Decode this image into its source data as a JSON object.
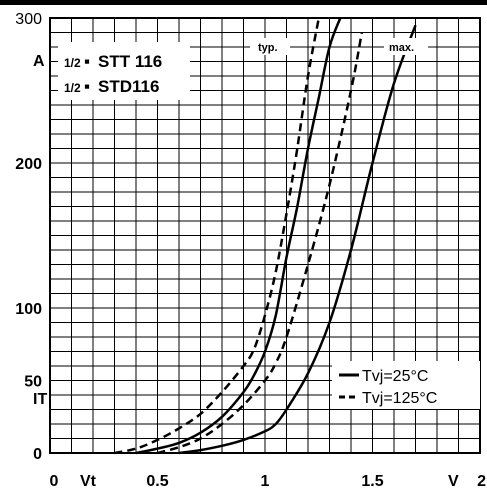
{
  "chart_data": {
    "type": "line",
    "title_lines": [
      {
        "fraction": "1/2",
        "text": "STT 116"
      },
      {
        "fraction": "1/2",
        "text": "STD116"
      }
    ],
    "xlabel": "Vt",
    "x_unit": "V",
    "ylabel": "IT",
    "y_unit": "A",
    "xlim": [
      0,
      2
    ],
    "ylim": [
      0,
      300
    ],
    "x_ticks": [
      {
        "value": 0,
        "label": "0"
      },
      {
        "value": 0.5,
        "label": "0.5"
      },
      {
        "value": 1,
        "label": "1"
      },
      {
        "value": 1.5,
        "label": "1.5"
      },
      {
        "value": 2,
        "label": "2"
      }
    ],
    "y_ticks": [
      {
        "value": 0,
        "label": "0"
      },
      {
        "value": 50,
        "label": "50"
      },
      {
        "value": 100,
        "label": "100"
      },
      {
        "value": 200,
        "label": "200"
      },
      {
        "value": 300,
        "label": "300"
      }
    ],
    "grid": true,
    "legend_position": "lower-right",
    "legend": [
      {
        "label": "Tvj=25°C",
        "style": "solid"
      },
      {
        "label": "Tvj=125°C",
        "style": "dashed"
      }
    ],
    "curve_labels": [
      "typ.",
      "max."
    ],
    "series": [
      {
        "temperature_label": "Tvj=25°C",
        "curve_label": "typ.",
        "style": "solid",
        "x": [
          0.4,
          0.5,
          0.6,
          0.7,
          0.8,
          0.9,
          0.95,
          1.0,
          1.05,
          1.1,
          1.15,
          1.2,
          1.25,
          1.3,
          1.35
        ],
        "y": [
          0,
          3,
          7,
          14,
          25,
          42,
          54,
          70,
          95,
          135,
          170,
          210,
          245,
          280,
          300
        ]
      },
      {
        "temperature_label": "Tvj=25°C",
        "curve_label": "max.",
        "style": "solid",
        "x": [
          0.6,
          0.7,
          0.8,
          0.9,
          1.0,
          1.05,
          1.1,
          1.2,
          1.3,
          1.4,
          1.5,
          1.6,
          1.7
        ],
        "y": [
          0,
          2,
          5,
          9,
          15,
          20,
          30,
          55,
          90,
          140,
          200,
          255,
          295
        ]
      },
      {
        "temperature_label": "Tvj=125°C",
        "curve_label": "typ.",
        "style": "dashed",
        "x": [
          0.3,
          0.4,
          0.5,
          0.6,
          0.7,
          0.8,
          0.9,
          0.95,
          1.0,
          1.05,
          1.1,
          1.15,
          1.2,
          1.25
        ],
        "y": [
          0,
          3,
          9,
          17,
          27,
          42,
          60,
          72,
          95,
          125,
          165,
          210,
          260,
          300
        ]
      },
      {
        "temperature_label": "Tvj=125°C",
        "curve_label": "max.",
        "style": "dashed",
        "x": [
          0.5,
          0.6,
          0.7,
          0.8,
          0.9,
          1.0,
          1.05,
          1.1,
          1.2,
          1.3,
          1.4,
          1.45
        ],
        "y": [
          0,
          4,
          10,
          20,
          33,
          50,
          62,
          80,
          130,
          185,
          250,
          290
        ]
      }
    ]
  }
}
